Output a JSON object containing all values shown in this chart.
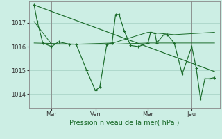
{
  "background_color": "#cceee4",
  "grid_color": "#aad4c8",
  "line_color": "#1a6b2a",
  "x_ticks_labels": [
    "Mar",
    "Ven",
    "Mer",
    "Jeu"
  ],
  "x_ticks_pos": [
    1.0,
    3.5,
    6.5,
    9.0
  ],
  "xlabel": "Pression niveau de la mer( hPa )",
  "yticks": [
    1014,
    1015,
    1016,
    1017
  ],
  "ylim": [
    1013.4,
    1017.9
  ],
  "xlim": [
    -0.3,
    10.6
  ],
  "main_series": [
    0.0,
    1017.75,
    0.18,
    1017.05,
    0.5,
    1016.15,
    1.0,
    1016.0,
    1.4,
    1016.2,
    2.0,
    1016.1,
    2.4,
    1016.1,
    3.0,
    1015.0,
    3.5,
    1014.15,
    3.75,
    1014.3,
    4.15,
    1016.1,
    4.45,
    1016.15,
    4.65,
    1017.35,
    4.85,
    1017.35,
    5.15,
    1016.65,
    5.5,
    1016.05,
    5.95,
    1016.0,
    6.5,
    1016.15,
    6.65,
    1016.6,
    6.9,
    1016.55,
    7.0,
    1016.15,
    7.4,
    1016.5,
    7.6,
    1016.5,
    8.0,
    1016.15,
    8.45,
    1014.85,
    9.0,
    1016.0,
    9.25,
    1015.1,
    9.5,
    1013.8,
    9.75,
    1014.65,
    10.0,
    1014.65,
    10.3,
    1014.7
  ],
  "trend_series": [
    0.0,
    1017.75,
    10.3,
    1014.95
  ],
  "extra_series": [
    [
      0.0,
      1017.05,
      1.0,
      1016.1,
      2.5,
      1016.1,
      4.5,
      1016.1,
      6.5,
      1016.15,
      8.0,
      1016.15,
      10.3,
      1016.15
    ],
    [
      0.0,
      1016.15,
      2.5,
      1016.1,
      4.5,
      1016.15,
      6.5,
      1016.6,
      8.0,
      1016.5,
      10.3,
      1016.6
    ]
  ],
  "vlines_x": [
    1.0,
    3.5,
    6.5,
    9.0
  ],
  "vline_color": "#888888"
}
